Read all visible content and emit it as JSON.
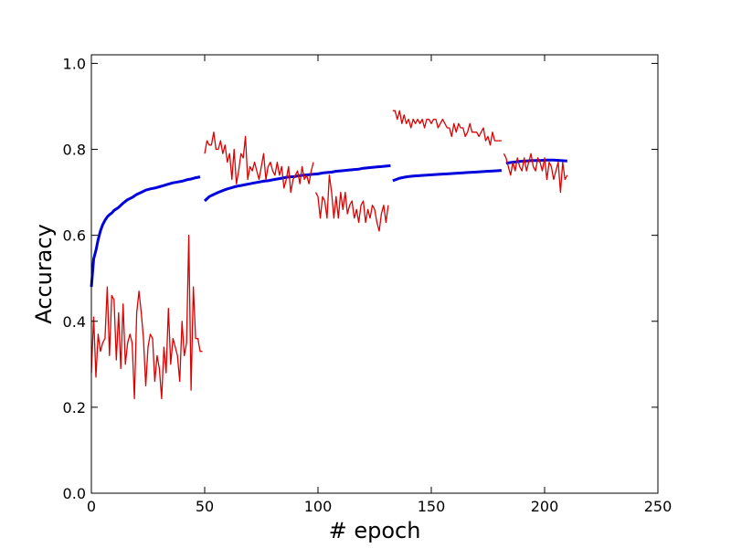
{
  "chart_data": {
    "type": "line",
    "xlabel": "# epoch",
    "ylabel": "Accuracy",
    "xlim": [
      0,
      250
    ],
    "ylim": [
      0,
      1.02
    ],
    "xticks": [
      "0",
      "50",
      "100",
      "150",
      "200",
      "250"
    ],
    "yticks": [
      "0.0",
      "0.2",
      "0.4",
      "0.6",
      "0.8",
      "1.0"
    ],
    "grid": false,
    "legend": "none",
    "colors": {
      "train": "#0000dd",
      "val": "#dd0000"
    },
    "series": [
      {
        "role": "train-segment",
        "color": "#0000dd",
        "x": [
          0,
          1,
          2,
          3,
          4,
          5,
          6,
          7,
          8,
          9,
          10,
          12,
          14,
          16,
          18,
          20,
          22,
          24,
          26,
          28,
          30,
          32,
          34,
          36,
          38,
          40,
          42,
          44,
          46,
          48
        ],
        "y": [
          0.48,
          0.545,
          0.565,
          0.59,
          0.61,
          0.625,
          0.635,
          0.643,
          0.648,
          0.652,
          0.658,
          0.665,
          0.675,
          0.683,
          0.688,
          0.695,
          0.7,
          0.705,
          0.708,
          0.71,
          0.713,
          0.716,
          0.719,
          0.722,
          0.724,
          0.726,
          0.729,
          0.731,
          0.734,
          0.736
        ]
      },
      {
        "role": "train-segment",
        "color": "#0000dd",
        "x": [
          50,
          52,
          54,
          56,
          58,
          60,
          62,
          64,
          66,
          68,
          70,
          72,
          74,
          76,
          78,
          80,
          82,
          84,
          86,
          88,
          90,
          92,
          94,
          96,
          98,
          100,
          102,
          104,
          106,
          108,
          110,
          112,
          114,
          116,
          118,
          120,
          122,
          124,
          126,
          128,
          130,
          132
        ],
        "y": [
          0.68,
          0.69,
          0.695,
          0.7,
          0.704,
          0.708,
          0.711,
          0.714,
          0.716,
          0.718,
          0.72,
          0.722,
          0.724,
          0.726,
          0.727,
          0.729,
          0.731,
          0.733,
          0.735,
          0.736,
          0.737,
          0.739,
          0.74,
          0.741,
          0.742,
          0.743,
          0.745,
          0.746,
          0.747,
          0.749,
          0.75,
          0.751,
          0.752,
          0.753,
          0.754,
          0.756,
          0.757,
          0.758,
          0.759,
          0.76,
          0.761,
          0.762
        ]
      },
      {
        "role": "train-segment",
        "color": "#0000dd",
        "x": [
          133,
          136,
          139,
          142,
          145,
          148,
          151,
          154,
          157,
          160,
          163,
          166,
          169,
          172,
          175,
          178,
          181
        ],
        "y": [
          0.727,
          0.733,
          0.736,
          0.738,
          0.739,
          0.74,
          0.741,
          0.742,
          0.743,
          0.744,
          0.745,
          0.746,
          0.747,
          0.748,
          0.749,
          0.75,
          0.751
        ]
      },
      {
        "role": "train-segment",
        "color": "#0000dd",
        "x": [
          183,
          186,
          189,
          192,
          195,
          198,
          201,
          204,
          207,
          210
        ],
        "y": [
          0.768,
          0.77,
          0.772,
          0.773,
          0.774,
          0.774,
          0.775,
          0.775,
          0.774,
          0.773
        ]
      },
      {
        "role": "val-segment",
        "color": "#dd0000",
        "x": [
          0,
          1,
          2,
          3,
          4,
          5,
          6,
          7,
          8,
          9,
          10,
          11,
          12,
          13,
          14,
          15,
          16,
          17,
          18,
          19,
          20,
          21,
          22,
          23,
          24,
          25,
          26,
          27,
          28,
          29,
          30,
          31,
          32,
          33,
          34,
          35,
          36,
          37,
          38,
          39,
          40,
          41,
          42,
          43,
          44,
          45,
          46,
          47,
          48,
          49
        ],
        "y": [
          0.28,
          0.41,
          0.27,
          0.37,
          0.33,
          0.35,
          0.36,
          0.48,
          0.32,
          0.46,
          0.45,
          0.31,
          0.42,
          0.29,
          0.44,
          0.3,
          0.35,
          0.37,
          0.35,
          0.22,
          0.42,
          0.47,
          0.42,
          0.36,
          0.25,
          0.34,
          0.37,
          0.36,
          0.26,
          0.32,
          0.29,
          0.22,
          0.34,
          0.28,
          0.43,
          0.3,
          0.36,
          0.34,
          0.32,
          0.26,
          0.4,
          0.32,
          0.35,
          0.6,
          0.24,
          0.48,
          0.36,
          0.36,
          0.33,
          0.33
        ]
      },
      {
        "role": "val-segment",
        "color": "#dd0000",
        "x": [
          50,
          51,
          52,
          53,
          54,
          55,
          56,
          57,
          58,
          59,
          60,
          61,
          62,
          63,
          64,
          65,
          66,
          67,
          68,
          69,
          70,
          71,
          72,
          73,
          74,
          75,
          76,
          77,
          78,
          79,
          80,
          81,
          82,
          83,
          84,
          85,
          86,
          87,
          88,
          89,
          90,
          91,
          92,
          93,
          94,
          95,
          96,
          97,
          98
        ],
        "y": [
          0.79,
          0.82,
          0.81,
          0.81,
          0.84,
          0.8,
          0.8,
          0.82,
          0.79,
          0.81,
          0.77,
          0.79,
          0.73,
          0.8,
          0.72,
          0.75,
          0.79,
          0.78,
          0.83,
          0.73,
          0.76,
          0.75,
          0.77,
          0.75,
          0.73,
          0.76,
          0.79,
          0.73,
          0.76,
          0.77,
          0.75,
          0.74,
          0.77,
          0.74,
          0.76,
          0.71,
          0.73,
          0.76,
          0.7,
          0.73,
          0.74,
          0.75,
          0.72,
          0.76,
          0.73,
          0.74,
          0.72,
          0.75,
          0.77
        ]
      },
      {
        "role": "val-segment",
        "color": "#dd0000",
        "x": [
          99,
          100,
          101,
          102,
          103,
          104,
          105,
          106,
          107,
          108,
          109,
          110,
          111,
          112,
          113,
          114,
          115,
          116,
          117,
          118,
          119,
          120,
          121,
          122,
          123,
          124,
          125,
          126,
          127,
          128,
          129,
          130,
          131
        ],
        "y": [
          0.7,
          0.69,
          0.64,
          0.69,
          0.68,
          0.64,
          0.74,
          0.7,
          0.64,
          0.69,
          0.64,
          0.7,
          0.66,
          0.7,
          0.65,
          0.67,
          0.68,
          0.64,
          0.66,
          0.63,
          0.67,
          0.68,
          0.63,
          0.66,
          0.64,
          0.67,
          0.66,
          0.63,
          0.61,
          0.65,
          0.67,
          0.63,
          0.67
        ]
      },
      {
        "role": "val-segment",
        "color": "#dd0000",
        "x": [
          133,
          134,
          135,
          136,
          137,
          138,
          139,
          140,
          141,
          142,
          143,
          144,
          145,
          146,
          147,
          148,
          149,
          150,
          151,
          152,
          153,
          154,
          155,
          156,
          157,
          158,
          159,
          160,
          161,
          162,
          163,
          164,
          165,
          166,
          167,
          168,
          169,
          170,
          171,
          172,
          173,
          174,
          175,
          176,
          177,
          178,
          179,
          180,
          181
        ],
        "y": [
          0.89,
          0.89,
          0.87,
          0.89,
          0.86,
          0.88,
          0.86,
          0.87,
          0.85,
          0.87,
          0.86,
          0.87,
          0.86,
          0.87,
          0.85,
          0.87,
          0.87,
          0.86,
          0.87,
          0.87,
          0.85,
          0.86,
          0.87,
          0.86,
          0.85,
          0.85,
          0.83,
          0.86,
          0.84,
          0.86,
          0.85,
          0.85,
          0.83,
          0.84,
          0.86,
          0.84,
          0.84,
          0.84,
          0.83,
          0.84,
          0.85,
          0.82,
          0.83,
          0.81,
          0.84,
          0.82,
          0.82,
          0.82,
          0.82
        ]
      },
      {
        "role": "val-segment",
        "color": "#dd0000",
        "x": [
          182,
          183,
          184,
          185,
          186,
          187,
          188,
          189,
          190,
          191,
          192,
          193,
          194,
          195,
          196,
          197,
          198,
          199,
          200,
          201,
          202,
          203,
          204,
          205,
          206,
          207,
          208,
          209,
          210
        ],
        "y": [
          0.79,
          0.78,
          0.76,
          0.74,
          0.77,
          0.75,
          0.78,
          0.76,
          0.75,
          0.78,
          0.75,
          0.77,
          0.79,
          0.76,
          0.75,
          0.78,
          0.77,
          0.75,
          0.78,
          0.73,
          0.77,
          0.76,
          0.73,
          0.75,
          0.77,
          0.7,
          0.77,
          0.73,
          0.74
        ]
      }
    ]
  }
}
